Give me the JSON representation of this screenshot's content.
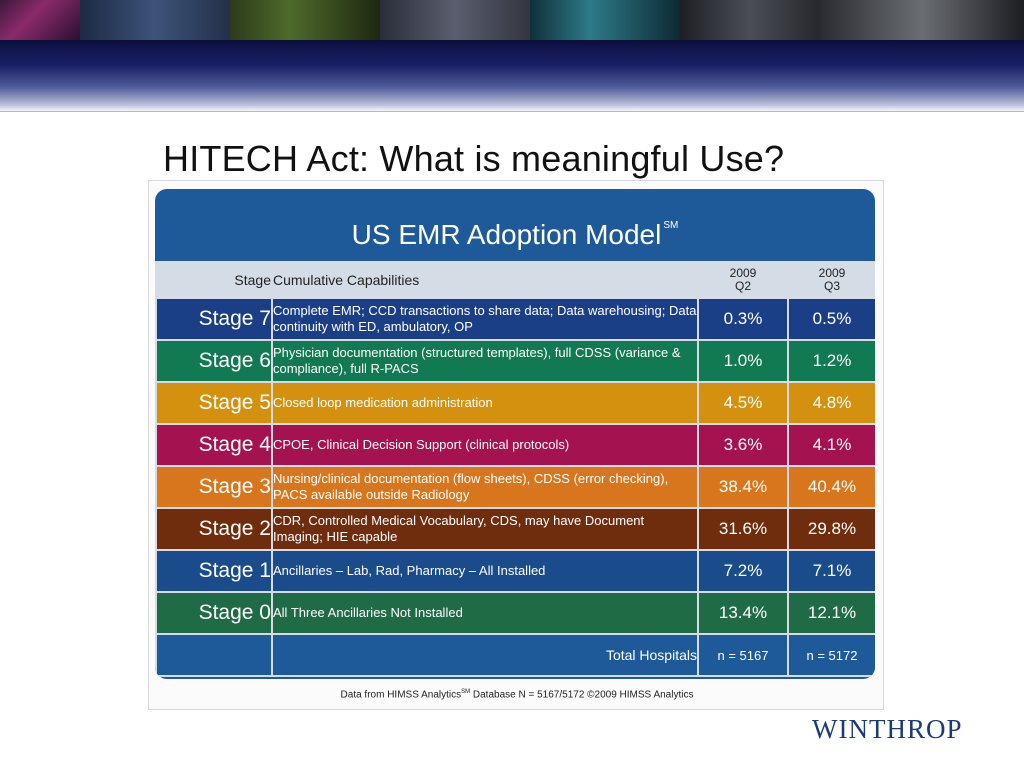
{
  "slide": {
    "title": "HITECH Act:  What is meaningful Use?",
    "logo": "WINTHROP"
  },
  "figure": {
    "title": "US EMR Adoption Model",
    "title_mark": "SM",
    "headers": {
      "stage": "Stage",
      "capabilities": "Cumulative Capabilities",
      "q2_year": "2009",
      "q2_quarter": "Q2",
      "q3_year": "2009",
      "q3_quarter": "Q3"
    },
    "rows": [
      {
        "stage": "Stage 7",
        "capabilities": "Complete EMR; CCD transactions to share data; Data warehousing; Data continuity with ED, ambulatory, OP",
        "q2": "0.3%",
        "q3": "0.5%",
        "color": "#1b3f87"
      },
      {
        "stage": "Stage 6",
        "capabilities": "Physician documentation (structured templates), full CDSS (variance & compliance), full R-PACS",
        "q2": "1.0%",
        "q3": "1.2%",
        "color": "#117a52"
      },
      {
        "stage": "Stage 5",
        "capabilities": "Closed loop medication administration",
        "q2": "4.5%",
        "q3": "4.8%",
        "color": "#d4910f"
      },
      {
        "stage": "Stage 4",
        "capabilities": "CPOE, Clinical Decision Support (clinical protocols)",
        "q2": "3.6%",
        "q3": "4.1%",
        "color": "#a4124f"
      },
      {
        "stage": "Stage 3",
        "capabilities": "Nursing/clinical documentation (flow sheets), CDSS (error checking), PACS available outside Radiology",
        "q2": "38.4%",
        "q3": "40.4%",
        "color": "#d8761e"
      },
      {
        "stage": "Stage 2",
        "capabilities": "CDR, Controlled Medical Vocabulary, CDS, may have Document Imaging; HIE capable",
        "q2": "31.6%",
        "q3": "29.8%",
        "color": "#6f2d0d"
      },
      {
        "stage": "Stage 1",
        "capabilities": "Ancillaries – Lab, Rad, Pharmacy – All Installed",
        "q2": "7.2%",
        "q3": "7.1%",
        "color": "#1a4b8a"
      },
      {
        "stage": "Stage 0",
        "capabilities": "All Three Ancillaries Not Installed",
        "q2": "13.4%",
        "q3": "12.1%",
        "color": "#1e6b45"
      }
    ],
    "total": {
      "label": "Total Hospitals",
      "q2": "n = 5167",
      "q3": "n = 5172"
    },
    "caption_pre": "Data from HIMSS Analytics",
    "caption_mark": "SM",
    "caption_post": " Database   N = 5167/5172 ©2009 HIMSS Analytics"
  }
}
